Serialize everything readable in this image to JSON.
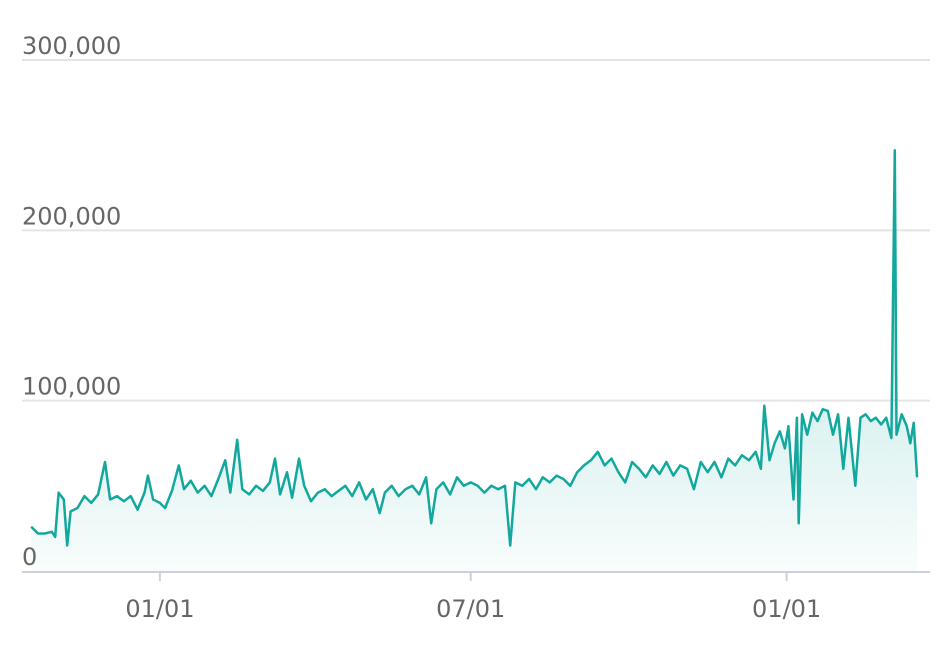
{
  "chart_data": {
    "type": "line",
    "x": [
      0,
      4,
      8,
      12,
      14,
      16,
      19,
      21,
      23,
      27,
      31,
      35,
      39,
      43,
      46,
      50,
      54,
      58,
      62,
      66,
      68,
      71,
      75,
      78,
      82,
      86,
      89,
      93,
      97,
      101,
      105,
      109,
      113,
      116,
      120,
      123,
      127,
      131,
      135,
      139,
      142,
      145,
      149,
      152,
      156,
      159,
      163,
      167,
      171,
      175,
      179,
      183,
      187,
      191,
      195,
      199,
      203,
      206,
      210,
      214,
      218,
      222,
      226,
      230,
      233,
      236,
      240,
      244,
      248,
      252,
      256,
      260,
      264,
      268,
      272,
      276,
      279,
      282,
      286,
      290,
      294,
      298,
      302,
      306,
      310,
      314,
      318,
      322,
      326,
      330,
      334,
      338,
      342,
      346,
      350,
      354,
      358,
      362,
      366,
      370,
      374,
      378,
      382,
      386,
      390,
      394,
      398,
      402,
      406,
      410,
      414,
      418,
      422,
      425,
      427,
      430,
      433,
      436,
      439,
      441,
      444,
      446,
      447,
      449,
      452,
      455,
      458,
      461,
      464,
      467,
      470,
      473,
      476,
      478,
      480,
      483,
      486,
      489,
      492,
      495,
      498,
      501,
      503,
      504,
      507,
      510,
      512,
      514,
      516
    ],
    "series": [
      {
        "color": "#13a89e",
        "values": [
          26000,
          22000,
          22000,
          23000,
          20000,
          46000,
          42000,
          15000,
          35000,
          37000,
          44000,
          40000,
          45000,
          64000,
          42000,
          44000,
          41000,
          44000,
          36000,
          46000,
          56000,
          42000,
          40000,
          37000,
          47000,
          62000,
          48000,
          53000,
          46000,
          50000,
          44000,
          54000,
          65000,
          46000,
          77000,
          48000,
          45000,
          50000,
          47000,
          52000,
          66000,
          45000,
          58000,
          43000,
          66000,
          50000,
          41000,
          46000,
          48000,
          44000,
          47000,
          50000,
          44000,
          52000,
          42000,
          48000,
          34000,
          46000,
          50000,
          44000,
          48000,
          50000,
          45000,
          55000,
          28000,
          48000,
          52000,
          45000,
          55000,
          50000,
          52000,
          50000,
          46000,
          50000,
          48000,
          50000,
          15000,
          52000,
          50000,
          54000,
          48000,
          55000,
          52000,
          56000,
          54000,
          50000,
          58000,
          62000,
          65000,
          70000,
          62000,
          66000,
          58000,
          52000,
          64000,
          60000,
          55000,
          62000,
          57000,
          64000,
          56000,
          62000,
          60000,
          48000,
          64000,
          58000,
          64000,
          55000,
          66000,
          62000,
          68000,
          65000,
          70000,
          60000,
          97000,
          65000,
          75000,
          82000,
          72000,
          85000,
          42000,
          90000,
          28000,
          92000,
          80000,
          93000,
          88000,
          95000,
          94000,
          80000,
          92000,
          60000,
          90000,
          70000,
          50000,
          90000,
          92000,
          88000,
          90000,
          86000,
          90000,
          78000,
          247000,
          80000,
          92000,
          85000,
          75000,
          87000,
          55000
        ]
      }
    ],
    "xlim": [
      -3,
      520
    ],
    "xticks": [
      {
        "value": 75,
        "label": "01/01"
      },
      {
        "value": 256,
        "label": "07/01"
      },
      {
        "value": 440,
        "label": "01/01"
      }
    ],
    "ylim": [
      0,
      300000
    ],
    "yticks": [
      0,
      {
        "value": 100000,
        "label": "100,000"
      },
      {
        "value": 200000,
        "label": "200,000"
      },
      {
        "value": 300000,
        "label": "300,000"
      }
    ],
    "grid": true
  }
}
